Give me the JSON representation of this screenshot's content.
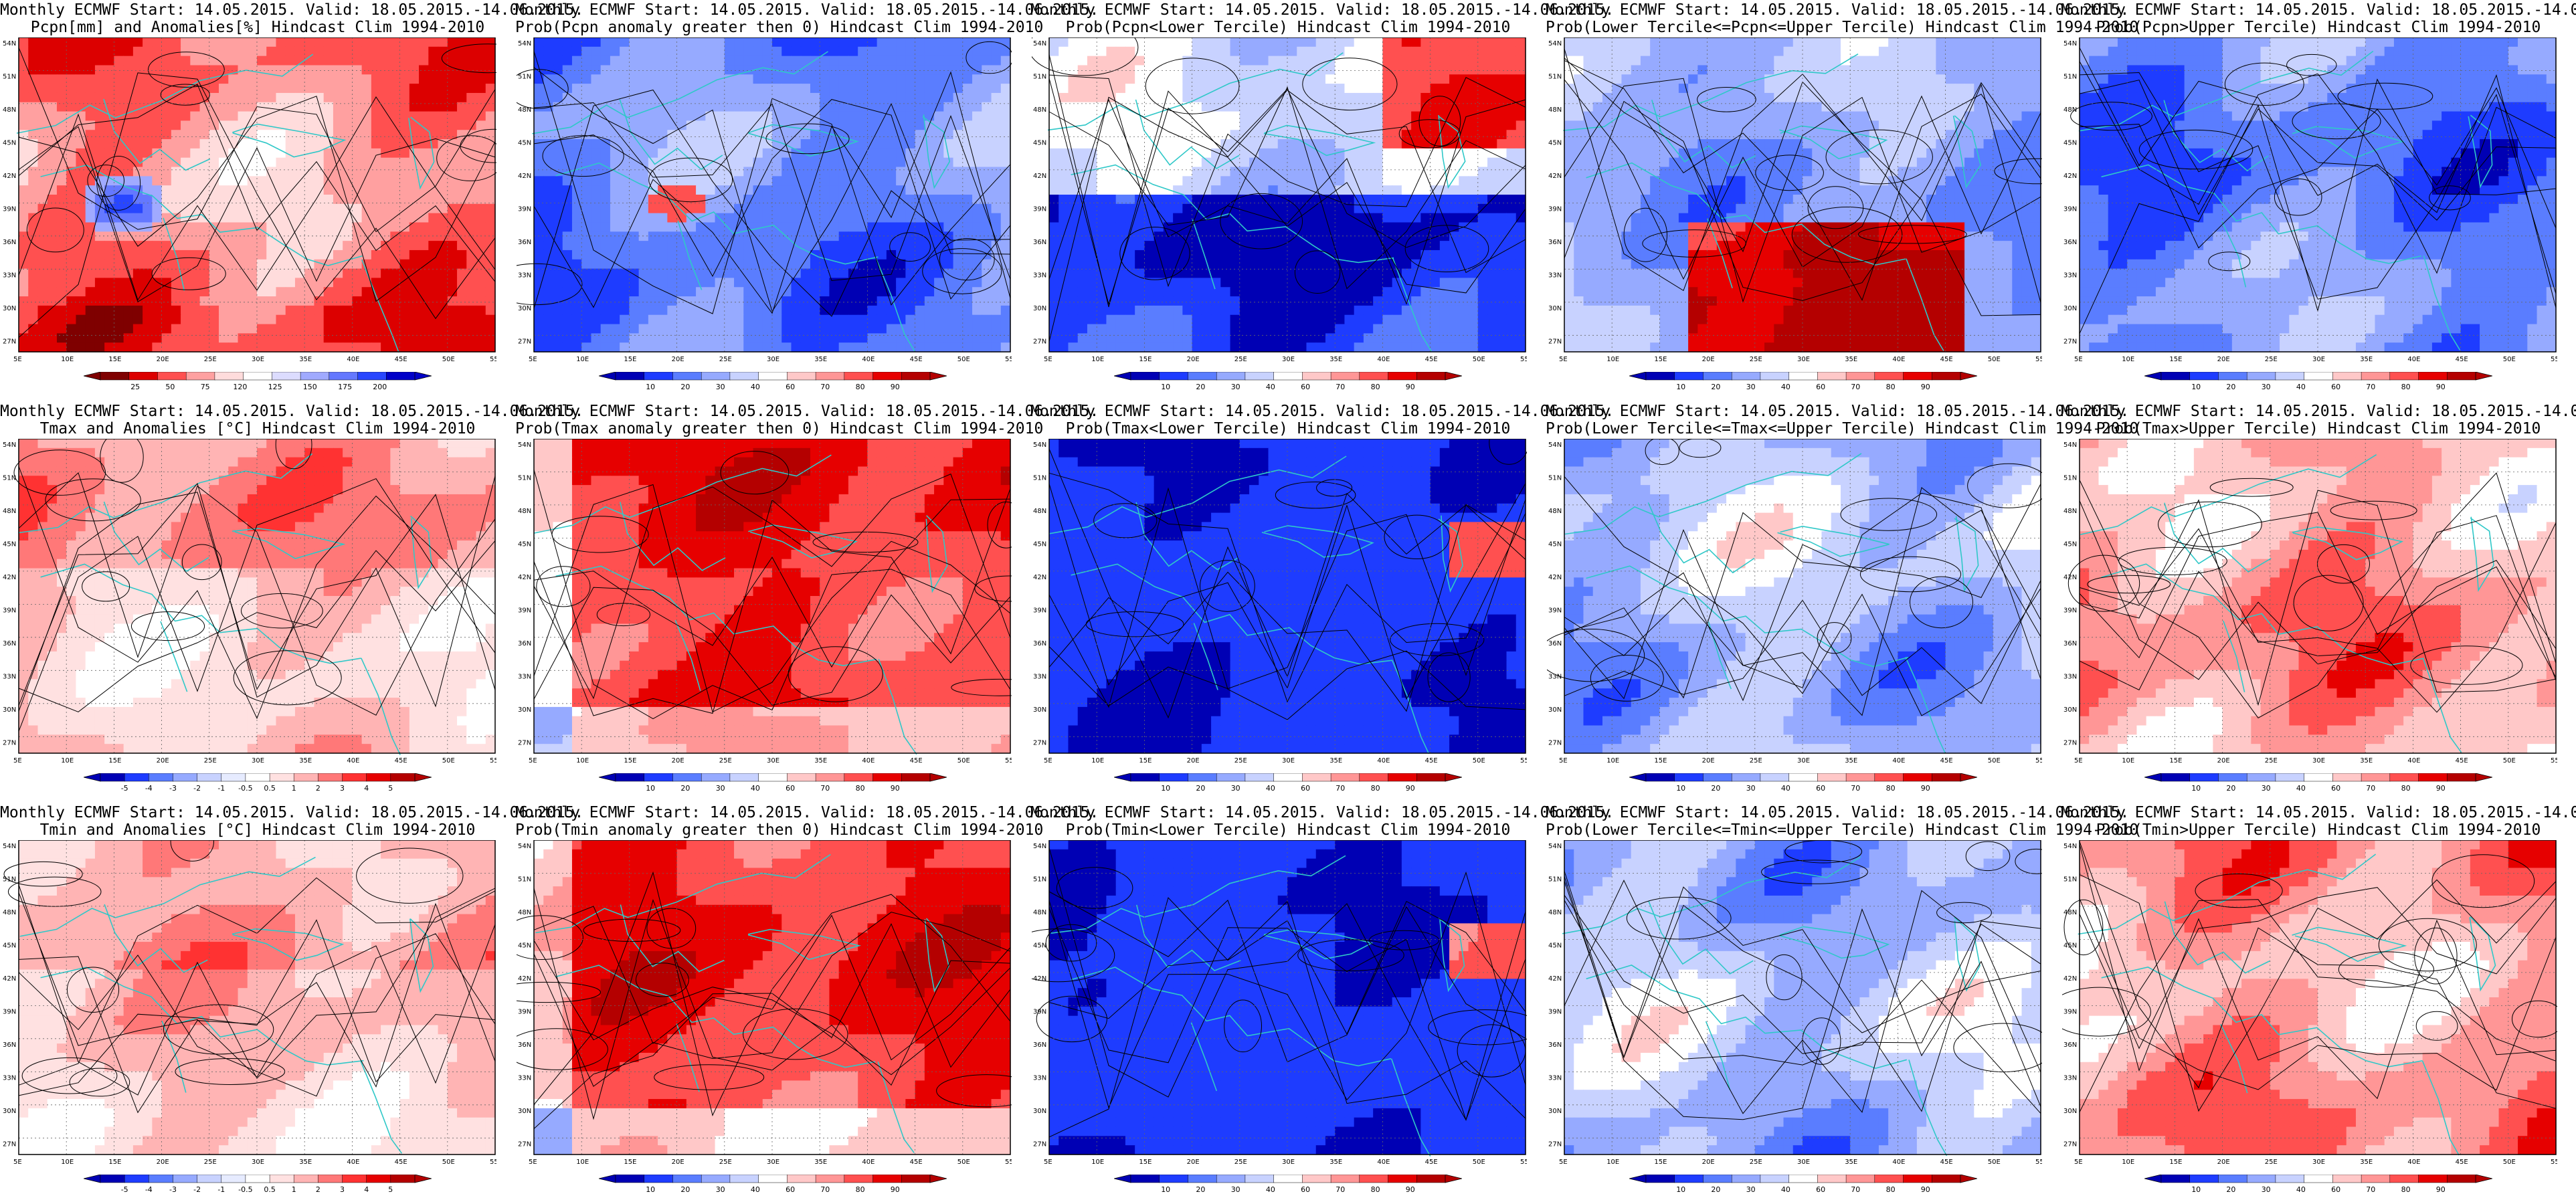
{
  "header_line": "Monthly ECMWF Start: 14.05.2015. Valid: 18.05.2015.-14.06.2015.",
  "lat_labels": [
    "54N",
    "51N",
    "48N",
    "45N",
    "42N",
    "39N",
    "36N",
    "33N",
    "30N",
    "27N"
  ],
  "lon_labels": [
    "5E",
    "10E",
    "15E",
    "20E",
    "25E",
    "30E",
    "35E",
    "40E",
    "45E",
    "50E",
    "55E"
  ],
  "panels": [
    {
      "subtitle": "Pcpn[mm] and Anomalies[%] Hindcast Clim 1994-2010",
      "type": "pcpn_anom",
      "colorbar": [
        "25",
        "50",
        "75",
        "120",
        "125",
        "150",
        "175",
        "200"
      ]
    },
    {
      "subtitle": "Prob(Pcpn anomaly greater then 0) Hindcast Clim 1994-2010",
      "type": "prob",
      "colorbar": [
        "10",
        "20",
        "30",
        "40",
        "60",
        "70",
        "80",
        "90"
      ]
    },
    {
      "subtitle": "Prob(Pcpn<Lower Tercile) Hindcast Clim 1994-2010",
      "type": "prob",
      "colorbar": [
        "10",
        "20",
        "30",
        "40",
        "60",
        "70",
        "80",
        "90"
      ]
    },
    {
      "subtitle": "Prob(Lower Tercile<=Pcpn<=Upper Tercile) Hindcast Clim 1994-2010",
      "type": "prob",
      "colorbar": [
        "10",
        "20",
        "30",
        "40",
        "60",
        "70",
        "80",
        "90"
      ]
    },
    {
      "subtitle": "Prob(Pcpn>Upper Tercile) Hindcast Clim 1994-2010",
      "type": "prob",
      "colorbar": [
        "10",
        "20",
        "30",
        "40",
        "60",
        "70",
        "80",
        "90"
      ]
    },
    {
      "subtitle": "Tmax and Anomalies [°C] Hindcast Clim 1994-2010",
      "type": "temp_anom",
      "colorbar": [
        "-5",
        "-4",
        "-3",
        "-2",
        "-1",
        "-0.5",
        "0.5",
        "1",
        "2",
        "3",
        "4",
        "5"
      ]
    },
    {
      "subtitle": "Prob(Tmax anomaly greater then 0) Hindcast Clim 1994-2010",
      "type": "prob",
      "colorbar": [
        "10",
        "20",
        "30",
        "40",
        "60",
        "70",
        "80",
        "90"
      ]
    },
    {
      "subtitle": "Prob(Tmax<Lower Tercile) Hindcast Clim 1994-2010",
      "type": "prob",
      "colorbar": [
        "10",
        "20",
        "30",
        "40",
        "60",
        "70",
        "80",
        "90"
      ]
    },
    {
      "subtitle": "Prob(Lower Tercile<=Tmax<=Upper Tercile) Hindcast Clim 1994-2010",
      "type": "prob",
      "colorbar": [
        "10",
        "20",
        "30",
        "40",
        "60",
        "70",
        "80",
        "90"
      ]
    },
    {
      "subtitle": "Prob(Tmax>Upper Tercile) Hindcast Clim 1994-2010",
      "type": "prob",
      "colorbar": [
        "10",
        "20",
        "30",
        "40",
        "60",
        "70",
        "80",
        "90"
      ]
    },
    {
      "subtitle": "Tmin and Anomalies [°C] Hindcast Clim 1994-2010",
      "type": "temp_anom",
      "colorbar": [
        "-5",
        "-4",
        "-3",
        "-2",
        "-1",
        "-0.5",
        "0.5",
        "1",
        "2",
        "3",
        "4",
        "5"
      ]
    },
    {
      "subtitle": "Prob(Tmin anomaly greater then 0) Hindcast Clim 1994-2010",
      "type": "prob",
      "colorbar": [
        "10",
        "20",
        "30",
        "40",
        "60",
        "70",
        "80",
        "90"
      ]
    },
    {
      "subtitle": "Prob(Tmin<Lower Tercile) Hindcast Clim 1994-2010",
      "type": "prob",
      "colorbar": [
        "10",
        "20",
        "30",
        "40",
        "60",
        "70",
        "80",
        "90"
      ]
    },
    {
      "subtitle": "Prob(Lower Tercile<=Tmin<=Upper Tercile) Hindcast Clim 1994-2010",
      "type": "prob",
      "colorbar": [
        "10",
        "20",
        "30",
        "40",
        "60",
        "70",
        "80",
        "90"
      ]
    },
    {
      "subtitle": "Prob(Tmin>Upper Tercile) Hindcast Clim 1994-2010",
      "type": "prob",
      "colorbar": [
        "10",
        "20",
        "30",
        "40",
        "60",
        "70",
        "80",
        "90"
      ]
    }
  ],
  "colors": {
    "prob": [
      "#0000b4",
      "#1e3cff",
      "#5a7dff",
      "#96aaff",
      "#c8d2ff",
      "#ffffff",
      "#ffc8c8",
      "#ff9696",
      "#ff5050",
      "#e60000",
      "#b40000"
    ],
    "pcpn": [
      "#7f0000",
      "#dc0000",
      "#ff5050",
      "#ffa0a0",
      "#ffdcdc",
      "#ffffff",
      "#dcdcff",
      "#a0aaff",
      "#6478ff",
      "#2846ff",
      "#0000c8"
    ],
    "temp": [
      "#0000b4",
      "#1e3cff",
      "#5a7dff",
      "#96aaff",
      "#c8d2ff",
      "#e6ebff",
      "#ffffff",
      "#ffe1e1",
      "#ffb4b4",
      "#ff7878",
      "#ff3232",
      "#e60000",
      "#b40000"
    ],
    "coast": "#2fc8c8"
  }
}
